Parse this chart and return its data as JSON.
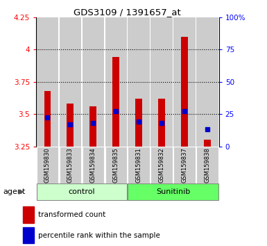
{
  "title": "GDS3109 / 1391657_at",
  "samples": [
    "GSM159830",
    "GSM159833",
    "GSM159834",
    "GSM159835",
    "GSM159831",
    "GSM159832",
    "GSM159837",
    "GSM159838"
  ],
  "red_values": [
    3.68,
    3.58,
    3.56,
    3.94,
    3.62,
    3.62,
    4.1,
    3.3
  ],
  "blue_values": [
    3.475,
    3.42,
    3.43,
    3.52,
    3.44,
    3.43,
    3.52,
    3.38
  ],
  "ymin": 3.25,
  "ymax": 4.25,
  "yticks_red": [
    3.25,
    3.5,
    3.75,
    4.0,
    4.25
  ],
  "yticks_blue": [
    0,
    25,
    50,
    75,
    100
  ],
  "ytick_red_labels": [
    "3.25",
    "3.5",
    "3.75",
    "4",
    "4.25"
  ],
  "ytick_blue_labels": [
    "0",
    "25",
    "50",
    "75",
    "100%"
  ],
  "bar_bottom": 3.25,
  "bar_color": "#cc0000",
  "dot_color": "#0000cc",
  "bg_sample": "#cccccc",
  "bg_plot": "#ffffff",
  "group_colors": [
    "#ccffcc",
    "#66ff66"
  ],
  "group_labels": [
    "control",
    "Sunitinib"
  ],
  "group_ranges": [
    [
      0,
      3
    ],
    [
      4,
      7
    ]
  ],
  "legend_red": "transformed count",
  "legend_blue": "percentile rank within the sample",
  "agent_label": "agent",
  "bar_width": 0.3
}
